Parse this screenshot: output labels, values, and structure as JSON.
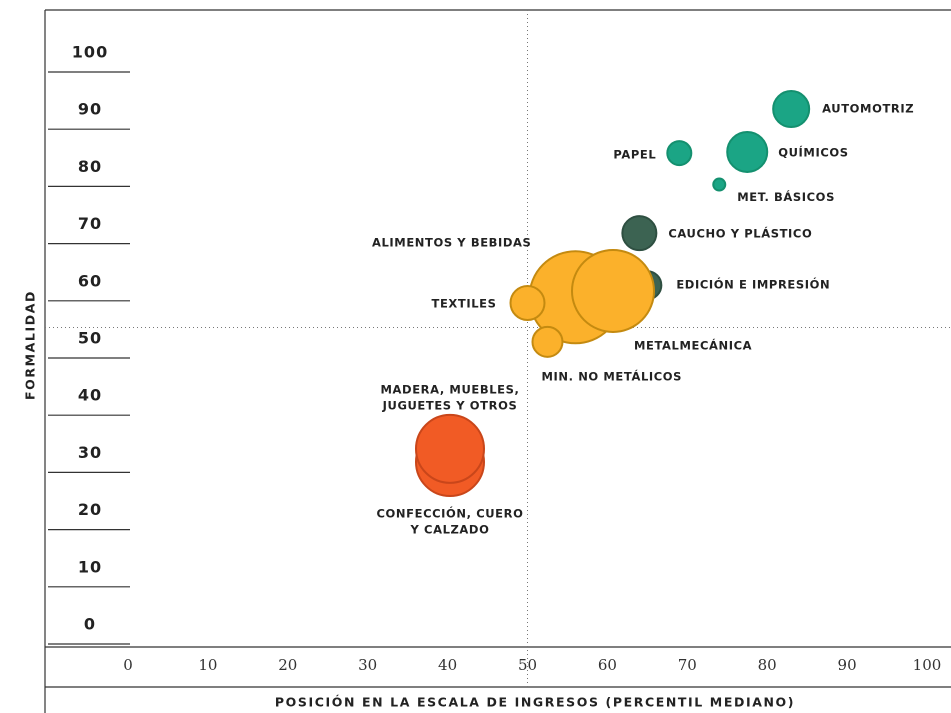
{
  "chart_data": {
    "type": "bubble",
    "xlabel": "POSICIÓN EN LA ESCALA DE INGRESOS (PERCENTIL MEDIANO)",
    "ylabel": "FORMALIDAD",
    "xlim": [
      0,
      100
    ],
    "xticks": [
      0,
      10,
      20,
      30,
      40,
      50,
      60,
      70,
      80,
      90,
      100
    ],
    "ylim": [
      0,
      100
    ],
    "yticks": [
      0,
      10,
      20,
      30,
      40,
      50,
      60,
      70,
      80,
      90,
      100
    ],
    "reference_x": 50,
    "reference_y": 52,
    "points": [
      {
        "label": [
          "AUTOMOTRIZ"
        ],
        "x": 83,
        "y": 90.2,
        "size": 18,
        "color": "#1ba585",
        "edge_color": "#14906f"
      },
      {
        "label": [
          "PAPEL"
        ],
        "x": 69,
        "y": 82.5,
        "size": 12,
        "color": "#1ba585",
        "edge_color": "#14906f"
      },
      {
        "label": [
          "QUÍMICOS"
        ],
        "x": 77.5,
        "y": 82.7,
        "size": 20,
        "color": "#1ba585",
        "edge_color": "#14906f"
      },
      {
        "label": [
          "MET. BÁSICOS"
        ],
        "x": 74,
        "y": 77,
        "size": 6,
        "color": "#1ba585",
        "edge_color": "#14906f"
      },
      {
        "label": [
          "CAUCHO Y PLÁSTICO"
        ],
        "x": 64,
        "y": 68.5,
        "size": 17,
        "color": "#3c6352",
        "edge_color": "#2e4f41"
      },
      {
        "label": [
          "EDICIÓN E IMPRESIÓN"
        ],
        "x": 65,
        "y": 59.4,
        "size": 14,
        "color": "#3c6352",
        "edge_color": "#2e4f41"
      },
      {
        "label": [
          "ALIMENTOS Y BEBIDAS"
        ],
        "x": 56,
        "y": 57.3,
        "size": 46,
        "color": "#fbb12b",
        "edge_color": "#c48a10"
      },
      {
        "label": [
          "METALMECÁNICA"
        ],
        "x": 60.7,
        "y": 58.4,
        "size": 41,
        "color": "#fbb12b",
        "edge_color": "#c48a10"
      },
      {
        "label": [
          "TEXTILES"
        ],
        "x": 50,
        "y": 56.3,
        "size": 17,
        "color": "#fbb12b",
        "edge_color": "#c48a10"
      },
      {
        "label": [
          "MIN. NO METÁLICOS"
        ],
        "x": 52.5,
        "y": 49.5,
        "size": 15,
        "color": "#fbb12b",
        "edge_color": "#c48a10"
      },
      {
        "label": [
          "CONFECCIÓN, CUERO",
          "Y CALZADO"
        ],
        "x": 40.3,
        "y": 28.5,
        "size": 34,
        "color": "#f15b25",
        "edge_color": "#c9461a"
      },
      {
        "label": [
          "MADERA, MUEBLES,",
          "JUGUETES Y OTROS"
        ],
        "x": 40.3,
        "y": 30.8,
        "size": 34,
        "color": "#f15b25",
        "edge_color": "#c9461a"
      }
    ]
  }
}
